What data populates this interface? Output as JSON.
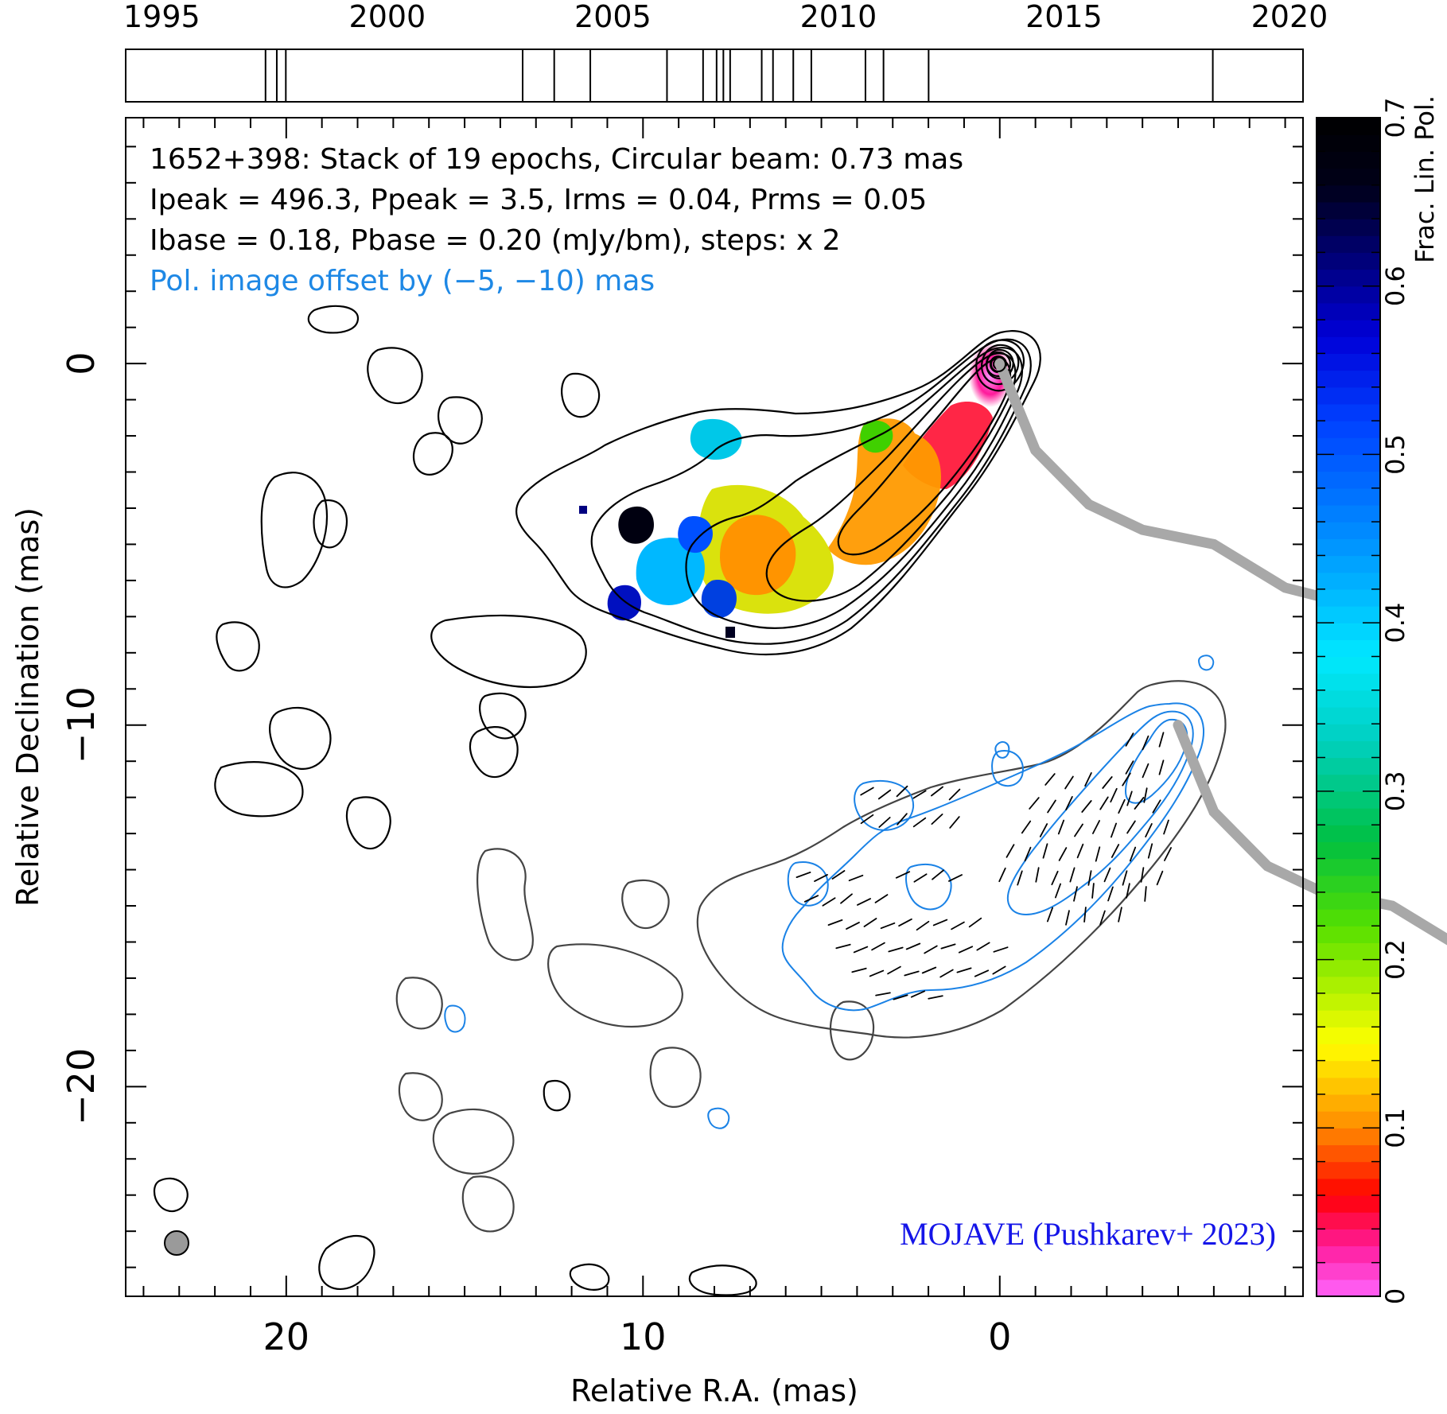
{
  "chart_data": {
    "type": "contour",
    "source": "1652+398",
    "info_lines": [
      "1652+398: Stack of 19 epochs, Circular beam: 0.73 mas",
      "Ipeak = 496.3, Ppeak = 3.5, Irms = 0.04, Prms = 0.05",
      "Ibase = 0.18, Pbase = 0.20 (mJy/bm), steps: x 2"
    ],
    "offset_note": "Pol. image offset by (−5, −10) mas",
    "credit": "MOJAVE (Pushkarev+ 2023)",
    "xlabel": "Relative R.A. (mas)",
    "ylabel": "Relative Declination (mas)",
    "xlim": [
      24.5,
      -8.5
    ],
    "ylim": [
      -25.8,
      6.8
    ],
    "x_ticks": [
      {
        "value": 20,
        "label": "20"
      },
      {
        "value": 10,
        "label": "10"
      },
      {
        "value": 0,
        "label": "0"
      }
    ],
    "y_ticks": [
      {
        "value": 0,
        "label": "0"
      },
      {
        "value": -10,
        "label": "−10"
      },
      {
        "value": -20,
        "label": "−20"
      }
    ],
    "timeline": {
      "range": [
        1994.2,
        2020.3
      ],
      "ticks": [
        {
          "value": 1995,
          "label": "1995"
        },
        {
          "value": 2000,
          "label": "2000"
        },
        {
          "value": 2005,
          "label": "2005"
        },
        {
          "value": 2010,
          "label": "2010"
        },
        {
          "value": 2015,
          "label": "2015"
        },
        {
          "value": 2020,
          "label": "2020"
        }
      ],
      "epochs": [
        1997.3,
        1997.55,
        1997.75,
        2003.0,
        2003.7,
        2004.5,
        2006.2,
        2007.0,
        2007.3,
        2007.45,
        2007.6,
        2008.3,
        2008.55,
        2009.0,
        2009.4,
        2010.6,
        2011.0,
        2012.0,
        2018.3
      ]
    },
    "colorbar": {
      "label": "Frac. Lin. Pol.",
      "range": [
        0,
        0.7
      ],
      "ticks": [
        {
          "value": 0,
          "label": "0"
        },
        {
          "value": 0.1,
          "label": "0.1"
        },
        {
          "value": 0.2,
          "label": "0.2"
        },
        {
          "value": 0.3,
          "label": "0.3"
        },
        {
          "value": 0.4,
          "label": "0.4"
        },
        {
          "value": 0.5,
          "label": "0.5"
        },
        {
          "value": 0.6,
          "label": "0.6"
        },
        {
          "value": 0.7,
          "label": "0.7"
        }
      ],
      "stops": [
        [
          0.0,
          "#ff66ff"
        ],
        [
          0.03,
          "#ff1a9a"
        ],
        [
          0.06,
          "#ff0000"
        ],
        [
          0.1,
          "#ff8a00"
        ],
        [
          0.15,
          "#ffff00"
        ],
        [
          0.22,
          "#55e000"
        ],
        [
          0.27,
          "#00c040"
        ],
        [
          0.33,
          "#00d0c0"
        ],
        [
          0.38,
          "#00e8ff"
        ],
        [
          0.45,
          "#0090ff"
        ],
        [
          0.52,
          "#0040ff"
        ],
        [
          0.57,
          "#0000d8"
        ],
        [
          0.62,
          "#000070"
        ],
        [
          0.66,
          "#000018"
        ],
        [
          0.7,
          "#000000"
        ]
      ]
    },
    "beam_diameter_mas": 0.73,
    "ridge_line": [
      [
        0,
        0
      ],
      [
        -1,
        -2.4
      ],
      [
        -2.5,
        -3.9
      ],
      [
        -4,
        -4.6
      ],
      [
        -6,
        -5
      ],
      [
        -8,
        -6.2
      ],
      [
        -10,
        -6.7
      ]
    ],
    "pol_ridge_line": [
      [
        -5,
        -10
      ],
      [
        -6,
        -12.4
      ],
      [
        -7.5,
        -13.9
      ],
      [
        -9,
        -14.6
      ],
      [
        -11,
        -15
      ],
      [
        -13,
        -16.2
      ],
      [
        -15,
        -16.7
      ]
    ],
    "colors": {
      "total_intensity_contour": "#000000",
      "offset_total_contour": "#444444",
      "pol_contour": "#1a82e6",
      "evpa_vector": "#000000",
      "ridge_line": "#a8a8a8",
      "beam_fill": "#9a9a9a",
      "offset_note": "#1e88e5",
      "credit": "#1515e8"
    }
  }
}
